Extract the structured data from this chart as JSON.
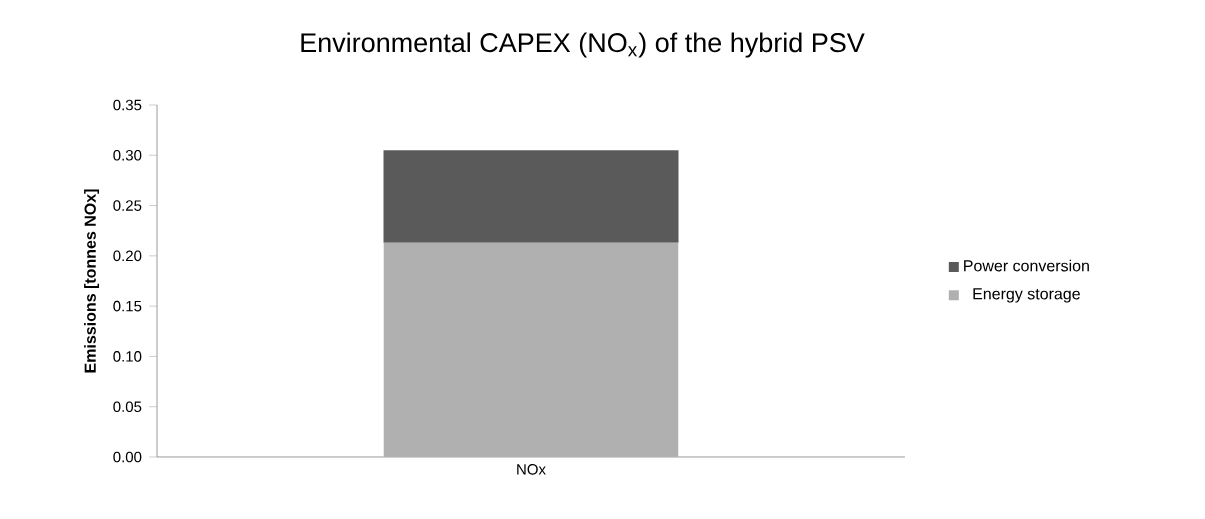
{
  "chart_data": {
    "type": "bar",
    "title": "Environmental CAPEX (NO$_{x}$) of the hybrid PSV",
    "ylabel": "Emissions [tonnes NOx]",
    "categories": [
      "NOx"
    ],
    "series": [
      {
        "name": "Energy storage",
        "color": "#b0b0b0",
        "values": [
          0.213
        ]
      },
      {
        "name": "Power conversion",
        "color": "#5a5a5a",
        "values": [
          0.092
        ]
      }
    ],
    "stacked": true,
    "legend": "right",
    "ylim": [
      0,
      0.35
    ],
    "yticks": [
      {
        "value": 0,
        "label": "0.00"
      },
      {
        "value": 0.05,
        "label": "0.05"
      },
      {
        "value": 0.1,
        "label": "0.10"
      },
      {
        "value": 0.15,
        "label": "0.15"
      },
      {
        "value": 0.2,
        "label": "0.20"
      },
      {
        "value": 0.25,
        "label": "0.25"
      },
      {
        "value": 0.3,
        "label": "0.30"
      },
      {
        "value": 0.35,
        "label": "0.35"
      }
    ]
  }
}
